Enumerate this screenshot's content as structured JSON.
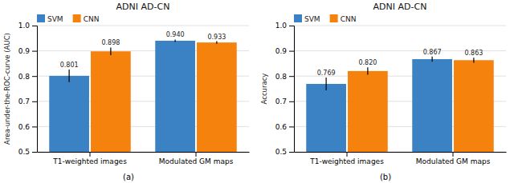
{
  "chart_data": [
    {
      "type": "bar",
      "title": "ADNI AD-CN",
      "y_label": "Area-under-the-ROC-curve (AUC)",
      "categories": [
        "T1-weighted images",
        "Modulated GM maps"
      ],
      "series": [
        {
          "name": "SVM",
          "color": "#3B82C4",
          "values": [
            0.801,
            0.94
          ],
          "value_labels": [
            "0.801",
            "0.940"
          ],
          "errors": [
            0.025,
            0.005
          ]
        },
        {
          "name": "CNN",
          "color": "#F5820D",
          "values": [
            0.898,
            0.933
          ],
          "value_labels": [
            "0.898",
            "0.933"
          ],
          "errors": [
            0.015,
            0.005
          ]
        }
      ],
      "ylim": [
        0.5,
        1.0
      ],
      "yticks": [
        0.5,
        0.6,
        0.7,
        0.8,
        0.9,
        {
          "value": 1.0,
          "label": "1.0"
        }
      ],
      "grid": true,
      "legend": "top-left",
      "data_labels": true,
      "annotations": [
        "(a)"
      ]
    },
    {
      "type": "bar",
      "title": "ADNI AD-CN",
      "y_label": "Accuracy",
      "categories": [
        "T1-weighted images",
        "Modulated GM maps"
      ],
      "series": [
        {
          "name": "SVM",
          "color": "#3B82C4",
          "values": [
            0.769,
            0.867
          ],
          "value_labels": [
            "0.769",
            "0.867"
          ],
          "errors": [
            0.025,
            0.01
          ]
        },
        {
          "name": "CNN",
          "color": "#F5820D",
          "values": [
            0.82,
            0.863
          ],
          "value_labels": [
            "0.820",
            "0.863"
          ],
          "errors": [
            0.015,
            0.01
          ]
        }
      ],
      "ylim": [
        0.5,
        1.0
      ],
      "yticks": [
        0.5,
        0.6,
        0.7,
        0.8,
        0.9,
        {
          "value": 1.0,
          "label": "1.0"
        }
      ],
      "grid": true,
      "legend": "top-left",
      "data_labels": true,
      "annotations": [
        "(b)"
      ]
    }
  ]
}
